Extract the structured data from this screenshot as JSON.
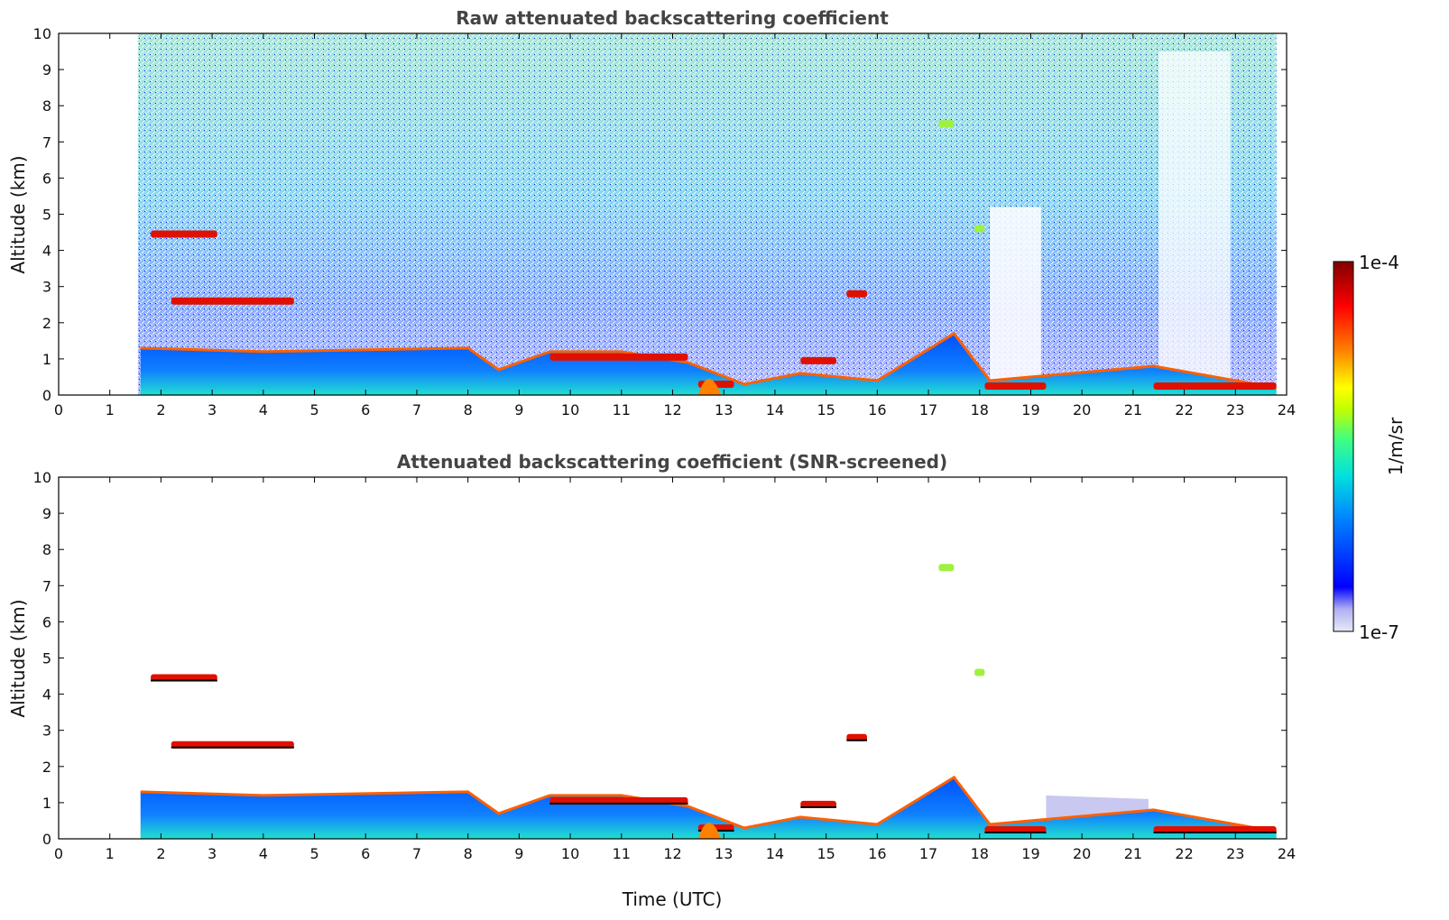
{
  "chart_data": [
    {
      "type": "heatmap",
      "title": "Raw attenuated backscattering coefficient",
      "xlabel": "",
      "ylabel": "Altitude (km)",
      "xlim": [
        0,
        24
      ],
      "ylim": [
        0,
        10
      ],
      "x_ticks": [
        0,
        1,
        2,
        3,
        4,
        5,
        6,
        7,
        8,
        9,
        10,
        11,
        12,
        13,
        14,
        15,
        16,
        17,
        18,
        19,
        20,
        21,
        22,
        23,
        24
      ],
      "y_ticks": [
        0,
        1,
        2,
        3,
        4,
        5,
        6,
        7,
        8,
        9,
        10
      ],
      "data_start_time": 1.55,
      "data_end_time": 23.8,
      "boundary_layer_top_km": [
        {
          "t": 1.6,
          "h": 1.3
        },
        {
          "t": 4.0,
          "h": 1.2
        },
        {
          "t": 8.0,
          "h": 1.3
        },
        {
          "t": 8.6,
          "h": 0.7
        },
        {
          "t": 9.6,
          "h": 1.2
        },
        {
          "t": 11.0,
          "h": 1.2
        },
        {
          "t": 12.3,
          "h": 0.9
        },
        {
          "t": 13.4,
          "h": 0.3
        },
        {
          "t": 14.5,
          "h": 0.6
        },
        {
          "t": 16.0,
          "h": 0.4
        },
        {
          "t": 17.5,
          "h": 1.7
        },
        {
          "t": 18.2,
          "h": 0.4
        },
        {
          "t": 21.4,
          "h": 0.8
        },
        {
          "t": 23.8,
          "h": 0.2
        }
      ],
      "cloud_layers": [
        {
          "t_start": 1.8,
          "t_end": 3.1,
          "h": 4.45,
          "intensity": "high"
        },
        {
          "t_start": 2.2,
          "t_end": 4.6,
          "h": 2.6,
          "intensity": "high"
        },
        {
          "t_start": 9.6,
          "t_end": 12.3,
          "h": 1.05,
          "intensity": "high"
        },
        {
          "t_start": 12.5,
          "t_end": 13.2,
          "h": 0.3,
          "intensity": "high"
        },
        {
          "t_start": 14.5,
          "t_end": 15.2,
          "h": 0.95,
          "intensity": "high"
        },
        {
          "t_start": 15.4,
          "t_end": 15.8,
          "h": 2.8,
          "intensity": "high"
        },
        {
          "t_start": 17.2,
          "t_end": 17.5,
          "h": 7.5,
          "intensity": "medium"
        },
        {
          "t_start": 17.9,
          "t_end": 18.1,
          "h": 4.6,
          "intensity": "medium"
        },
        {
          "t_start": 18.1,
          "t_end": 19.3,
          "h": 0.25,
          "intensity": "high"
        },
        {
          "t_start": 21.4,
          "t_end": 23.8,
          "h": 0.25,
          "intensity": "high"
        }
      ]
    },
    {
      "type": "heatmap",
      "title": "Attenuated backscattering coefficient (SNR-screened)",
      "xlabel": "Time (UTC)",
      "ylabel": "Altitude (km)",
      "xlim": [
        0,
        24
      ],
      "ylim": [
        0,
        10
      ],
      "x_ticks": [
        0,
        1,
        2,
        3,
        4,
        5,
        6,
        7,
        8,
        9,
        10,
        11,
        12,
        13,
        14,
        15,
        16,
        17,
        18,
        19,
        20,
        21,
        22,
        23,
        24
      ],
      "y_ticks": [
        0,
        1,
        2,
        3,
        4,
        5,
        6,
        7,
        8,
        9,
        10
      ],
      "data_start_time": 1.55,
      "data_end_time": 23.8
    }
  ],
  "colorbar": {
    "label": "1/m/sr",
    "max_label": "1e-4",
    "min_label": "1e-7",
    "scale": "log",
    "colors": [
      "#e8e8fa",
      "#b0b0f0",
      "#0000ff",
      "#0080ff",
      "#00e0e0",
      "#40ff80",
      "#c0ff00",
      "#ffff00",
      "#ff8000",
      "#ff0000",
      "#800000"
    ]
  }
}
